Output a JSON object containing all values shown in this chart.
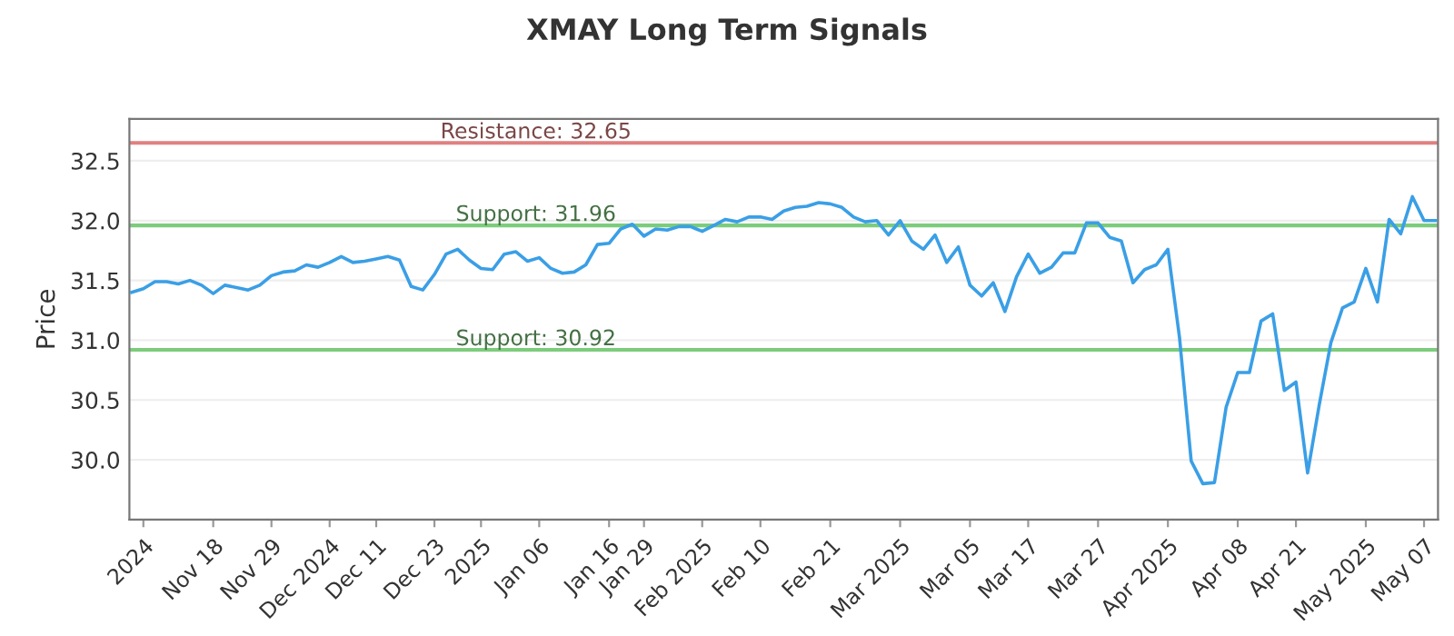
{
  "chart_data": {
    "type": "line",
    "title": "XMAY Long Term Signals",
    "ylabel": "Price",
    "categories": [
      null,
      "2024",
      null,
      null,
      null,
      null,
      null,
      "Nov 18",
      null,
      null,
      null,
      null,
      "Nov 29",
      null,
      null,
      null,
      null,
      "Dec 2024",
      null,
      null,
      null,
      "Dec 11",
      null,
      null,
      null,
      null,
      "Dec 23",
      null,
      null,
      null,
      "2025",
      null,
      null,
      null,
      null,
      "Jan 06",
      null,
      null,
      null,
      null,
      null,
      "Jan 16",
      null,
      null,
      "Jan 29",
      null,
      null,
      null,
      null,
      "Feb 2025",
      null,
      null,
      null,
      null,
      "Feb 10",
      null,
      null,
      null,
      null,
      null,
      "Feb 21",
      null,
      null,
      null,
      null,
      null,
      "Mar 2025",
      null,
      null,
      null,
      null,
      null,
      "Mar 05",
      null,
      null,
      null,
      null,
      "Mar 17",
      null,
      null,
      null,
      null,
      null,
      "Mar 27",
      null,
      null,
      null,
      null,
      null,
      "Apr 2025",
      null,
      null,
      null,
      null,
      null,
      "Apr 08",
      null,
      null,
      null,
      null,
      "Apr 21",
      null,
      null,
      null,
      null,
      null,
      "May 2025",
      null,
      null,
      null,
      null,
      "May 07",
      null
    ],
    "series": [
      {
        "color": "#3a9fe6",
        "values": [
          31.4,
          31.43,
          31.49,
          31.49,
          31.47,
          31.5,
          31.46,
          31.39,
          31.46,
          31.44,
          31.42,
          31.46,
          31.54,
          31.57,
          31.58,
          31.63,
          31.61,
          31.65,
          31.7,
          31.65,
          31.66,
          31.68,
          31.7,
          31.67,
          31.45,
          31.42,
          31.55,
          31.72,
          31.76,
          31.67,
          31.6,
          31.59,
          31.72,
          31.74,
          31.66,
          31.69,
          31.6,
          31.56,
          31.57,
          31.63,
          31.8,
          31.81,
          31.93,
          31.97,
          31.87,
          31.93,
          31.92,
          31.95,
          31.95,
          31.91,
          31.96,
          32.01,
          31.99,
          32.03,
          32.03,
          32.01,
          32.08,
          32.11,
          32.12,
          32.15,
          32.14,
          32.11,
          32.03,
          31.99,
          32.0,
          31.88,
          32.0,
          31.83,
          31.76,
          31.88,
          31.65,
          31.78,
          31.46,
          31.37,
          31.48,
          31.24,
          31.53,
          31.72,
          31.56,
          31.61,
          31.73,
          31.73,
          31.98,
          31.98,
          31.86,
          31.83,
          31.48,
          31.59,
          31.63,
          31.76,
          31.02,
          29.99,
          29.8,
          29.81,
          30.44,
          30.73,
          30.73,
          31.16,
          31.22,
          30.58,
          30.65,
          29.89,
          30.46,
          30.98,
          31.27,
          31.32,
          31.6,
          31.32,
          32.01,
          31.89,
          32.2,
          32.0,
          32.0
        ]
      }
    ],
    "ylim": [
      29.5,
      32.85
    ],
    "yticks": [
      {
        "value": 30,
        "label": "30.0"
      },
      {
        "value": 30.5,
        "label": "30.5"
      },
      {
        "value": 31,
        "label": "31.0"
      },
      {
        "value": 31.5,
        "label": "31.5"
      },
      {
        "value": 32,
        "label": "32.0"
      },
      {
        "value": 32.5,
        "label": "32.5"
      }
    ],
    "grid": "y",
    "ref_lines": [
      {
        "axis": "y",
        "value": 32.65,
        "label": "Resistance: 32.65",
        "color": "#e08080"
      },
      {
        "axis": "y",
        "value": 31.96,
        "label": "Support: 31.96",
        "color": "#7ccc7c"
      },
      {
        "axis": "y",
        "value": 30.92,
        "label": "Support: 30.92",
        "color": "#7ccc7c"
      }
    ]
  }
}
